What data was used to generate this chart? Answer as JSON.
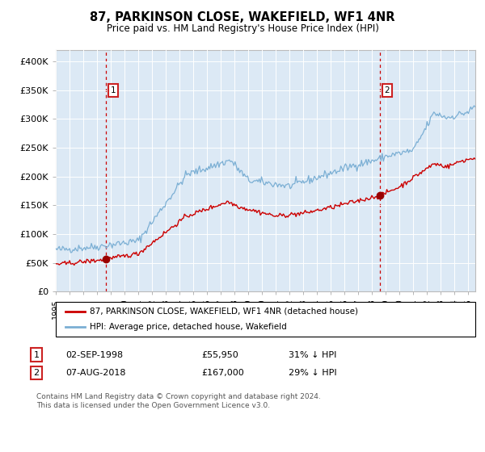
{
  "title": "87, PARKINSON CLOSE, WAKEFIELD, WF1 4NR",
  "subtitle": "Price paid vs. HM Land Registry's House Price Index (HPI)",
  "legend_line1": "87, PARKINSON CLOSE, WAKEFIELD, WF1 4NR (detached house)",
  "legend_line2": "HPI: Average price, detached house, Wakefield",
  "annotation1_date": "02-SEP-1998",
  "annotation1_price": "£55,950",
  "annotation1_hpi": "31% ↓ HPI",
  "annotation2_date": "07-AUG-2018",
  "annotation2_price": "£167,000",
  "annotation2_hpi": "29% ↓ HPI",
  "footer": "Contains HM Land Registry data © Crown copyright and database right 2024.\nThis data is licensed under the Open Government Licence v3.0.",
  "background_color": "#dce9f5",
  "fig_bg_color": "#ffffff",
  "red_line_color": "#cc0000",
  "blue_line_color": "#7bafd4",
  "marker_color": "#990000",
  "grid_color": "#ffffff",
  "vline_color": "#cc0000",
  "annotation_box_color": "#cc2222",
  "ylim": [
    0,
    420000
  ],
  "xlim_start": 1995.0,
  "xlim_end": 2025.5,
  "sale1_x": 1998.67,
  "sale1_y": 55950,
  "sale2_x": 2018.58,
  "sale2_y": 167000
}
